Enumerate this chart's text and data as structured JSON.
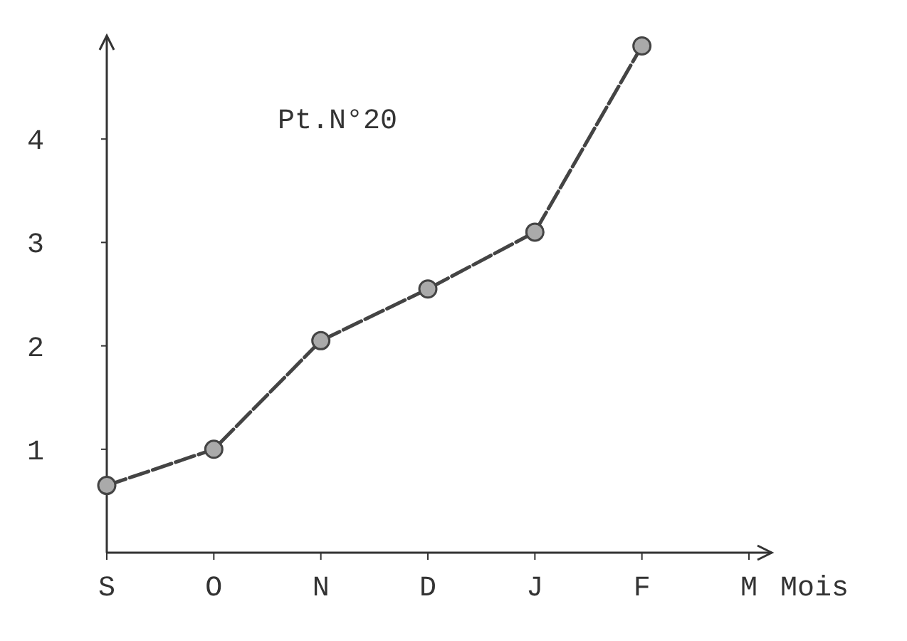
{
  "chart_data": {
    "type": "line",
    "categories": [
      "S",
      "O",
      "N",
      "D",
      "J",
      "F",
      "M"
    ],
    "series": [
      {
        "color": "#444444",
        "values": [
          0.65,
          1.0,
          2.05,
          2.55,
          3.1,
          4.9,
          null
        ]
      }
    ],
    "ylim": [
      0,
      5
    ],
    "yticks": [
      1,
      2,
      3,
      4
    ],
    "xlabel": "Mois",
    "annotations": [
      "Pt.N°20"
    ],
    "marker": "circle",
    "line_style": "dashed"
  }
}
